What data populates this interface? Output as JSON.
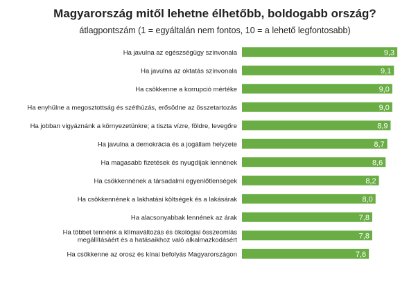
{
  "chart_data": {
    "type": "bar",
    "orientation": "horizontal",
    "title": "Magyarország mitől lehetne élhetőbb, boldogabb ország?",
    "subtitle": "átlagpontszám (1 = egyáltalán nem fontos, 10 = a lehető legfontosabb)",
    "xlim": [
      0,
      10
    ],
    "grid": false,
    "color": "#6aad45",
    "categories": [
      "Ha javulna az egészségügy színvonala",
      "Ha javulna az oktatás színvonala",
      "Ha csökkenne a korrupció mértéke",
      "Ha enyhülne a megosztottság és széthúzás, erősödne az összetartozás",
      "Ha jobban vigyáznánk a környezetünkre; a tiszta vízre, földre, levegőre",
      "Ha javulna a demokrácia és a jogállam helyzete",
      "Ha magasabb fizetések és nyugdíjak lennének",
      "Ha csökkennének a társadalmi egyenlőtlenségek",
      "Ha csökkennének a lakhatási költségek és a lakásárak",
      "Ha alacsonyabbak lennének az árak",
      "Ha többet tennénk a klímaváltozás és ökológiai összeomlás megállításáért és a hatásaikhoz való alkalmazkodásért",
      "Ha csökkenne az orosz és kínai befolyás Magyarországon"
    ],
    "values": [
      9.3,
      9.1,
      9.0,
      9.0,
      8.9,
      8.7,
      8.6,
      8.2,
      8.0,
      7.8,
      7.8,
      7.6
    ],
    "value_labels": [
      "9,3",
      "9,1",
      "9,0",
      "9,0",
      "8,9",
      "8,7",
      "8,6",
      "8,2",
      "8,0",
      "7,8",
      "7,8",
      "7,6"
    ]
  }
}
